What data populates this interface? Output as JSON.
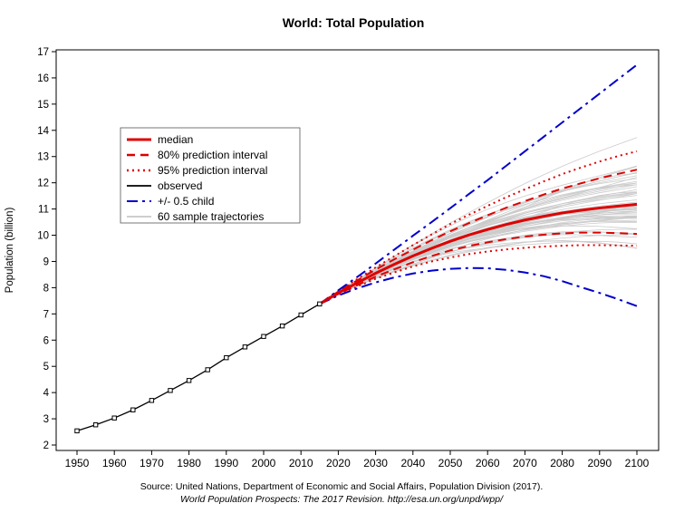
{
  "title": "World: Total Population",
  "source_line1": "Source: United Nations, Department of Economic and Social Affairs, Population Division (2017).",
  "source_line2": "World Population Prospects: The 2017 Revision. http://esa.un.org/unpd/wpp/",
  "colors": {
    "red": "#dd0000",
    "blue": "#0000cc",
    "black": "#000000",
    "gray": "#bdbdbd"
  },
  "chart_data": {
    "type": "line",
    "title": "World: Total Population",
    "xlabel": "",
    "ylabel": "Population (billion)",
    "xlim": [
      1950,
      2100
    ],
    "ylim": [
      2,
      17
    ],
    "grid": false,
    "legend_position": "upper-left-inside",
    "x_ticks": [
      1950,
      1960,
      1970,
      1980,
      1990,
      2000,
      2010,
      2020,
      2030,
      2040,
      2050,
      2060,
      2070,
      2080,
      2090,
      2100
    ],
    "y_ticks": [
      2,
      3,
      4,
      5,
      6,
      7,
      8,
      9,
      10,
      11,
      12,
      13,
      14,
      15,
      16,
      17
    ],
    "legend": [
      {
        "label": "median",
        "color": "#dd0000",
        "style": "solid",
        "sample_width": 3
      },
      {
        "label": "80% prediction interval",
        "color": "#dd0000",
        "style": "dashed",
        "sample_width": 2.4
      },
      {
        "label": "95% prediction interval",
        "color": "#dd0000",
        "style": "dotted",
        "sample_width": 2.4
      },
      {
        "label": "observed",
        "color": "#000000",
        "style": "solid",
        "sample_width": 1.8
      },
      {
        "label": "+/- 0.5 child",
        "color": "#0000cc",
        "style": "dashdot",
        "sample_width": 2
      },
      {
        "label": "60 sample trajectories",
        "color": "#bdbdbd",
        "style": "solid",
        "sample_width": 1.4
      }
    ],
    "series": [
      {
        "name": "95pi_upper",
        "color": "#dd0000",
        "style": "dotted",
        "width": 2,
        "x": [
          2015,
          2020,
          2025,
          2030,
          2035,
          2040,
          2045,
          2050,
          2055,
          2060,
          2065,
          2070,
          2075,
          2080,
          2085,
          2090,
          2095,
          2100
        ],
        "values": [
          7.38,
          7.87,
          8.32,
          8.77,
          9.2,
          9.62,
          10.03,
          10.43,
          10.78,
          11.12,
          11.45,
          11.75,
          12.05,
          12.33,
          12.58,
          12.81,
          13.02,
          13.2
        ]
      },
      {
        "name": "95pi_lower",
        "color": "#dd0000",
        "style": "dotted",
        "width": 2,
        "x": [
          2015,
          2020,
          2025,
          2030,
          2035,
          2040,
          2045,
          2050,
          2055,
          2060,
          2065,
          2070,
          2075,
          2080,
          2085,
          2090,
          2095,
          2100
        ],
        "values": [
          7.38,
          7.73,
          8.04,
          8.34,
          8.58,
          8.81,
          9.0,
          9.15,
          9.28,
          9.38,
          9.46,
          9.52,
          9.57,
          9.6,
          9.62,
          9.62,
          9.61,
          9.6
        ]
      },
      {
        "name": "80pi_upper",
        "color": "#dd0000",
        "style": "dashed",
        "width": 2,
        "x": [
          2015,
          2020,
          2025,
          2030,
          2035,
          2040,
          2045,
          2050,
          2055,
          2060,
          2065,
          2070,
          2075,
          2080,
          2085,
          2090,
          2095,
          2100
        ],
        "values": [
          7.38,
          7.85,
          8.27,
          8.69,
          9.08,
          9.45,
          9.81,
          10.15,
          10.46,
          10.76,
          11.05,
          11.3,
          11.55,
          11.78,
          11.98,
          12.17,
          12.34,
          12.5
        ]
      },
      {
        "name": "80pi_lower",
        "color": "#dd0000",
        "style": "dashed",
        "width": 2,
        "x": [
          2015,
          2020,
          2025,
          2030,
          2035,
          2040,
          2045,
          2050,
          2055,
          2060,
          2065,
          2070,
          2075,
          2080,
          2085,
          2090,
          2095,
          2100
        ],
        "values": [
          7.38,
          7.76,
          8.09,
          8.42,
          8.7,
          8.97,
          9.21,
          9.42,
          9.59,
          9.73,
          9.85,
          9.95,
          10.02,
          10.07,
          10.1,
          10.1,
          10.08,
          10.05
        ]
      },
      {
        "name": "plus_half_child",
        "color": "#0000cc",
        "style": "dashdot",
        "width": 2,
        "x": [
          2015,
          2020,
          2025,
          2030,
          2035,
          2040,
          2045,
          2050,
          2055,
          2060,
          2065,
          2070,
          2075,
          2080,
          2085,
          2090,
          2095,
          2100
        ],
        "values": [
          7.38,
          7.9,
          8.4,
          8.92,
          9.45,
          9.98,
          10.5,
          11.03,
          11.57,
          12.1,
          12.65,
          13.2,
          13.75,
          14.3,
          14.85,
          15.4,
          15.95,
          16.5
        ]
      },
      {
        "name": "minus_half_child",
        "color": "#0000cc",
        "style": "dashdot",
        "width": 2,
        "x": [
          2015,
          2020,
          2025,
          2030,
          2035,
          2040,
          2045,
          2050,
          2055,
          2060,
          2065,
          2070,
          2075,
          2080,
          2085,
          2090,
          2095,
          2100
        ],
        "values": [
          7.38,
          7.7,
          7.97,
          8.2,
          8.39,
          8.54,
          8.65,
          8.72,
          8.75,
          8.74,
          8.68,
          8.58,
          8.44,
          8.25,
          8.02,
          7.8,
          7.56,
          7.3
        ]
      },
      {
        "name": "median",
        "color": "#dd0000",
        "style": "solid",
        "width": 3,
        "x": [
          2015,
          2020,
          2025,
          2030,
          2035,
          2040,
          2045,
          2050,
          2055,
          2060,
          2065,
          2070,
          2075,
          2080,
          2085,
          2090,
          2095,
          2100
        ],
        "values": [
          7.38,
          7.8,
          8.18,
          8.55,
          8.89,
          9.21,
          9.5,
          9.77,
          10.01,
          10.22,
          10.41,
          10.58,
          10.72,
          10.85,
          10.95,
          11.04,
          11.11,
          11.18
        ]
      },
      {
        "name": "observed",
        "color": "#000000",
        "style": "solid",
        "width": 1.3,
        "markers": true,
        "x": [
          1950,
          1955,
          1960,
          1965,
          1970,
          1975,
          1980,
          1985,
          1990,
          1995,
          2000,
          2005,
          2010,
          2015
        ],
        "values": [
          2.54,
          2.77,
          3.03,
          3.34,
          3.7,
          4.08,
          4.46,
          4.87,
          5.33,
          5.74,
          6.14,
          6.54,
          6.96,
          7.38
        ]
      }
    ],
    "sample_trajectories": {
      "count": 60,
      "start_year": 2015,
      "start_value": 7.38,
      "end_year": 2100,
      "end_mean": 11.2,
      "end_range": [
        9.5,
        14.6
      ],
      "color": "#c6c6c6"
    }
  }
}
